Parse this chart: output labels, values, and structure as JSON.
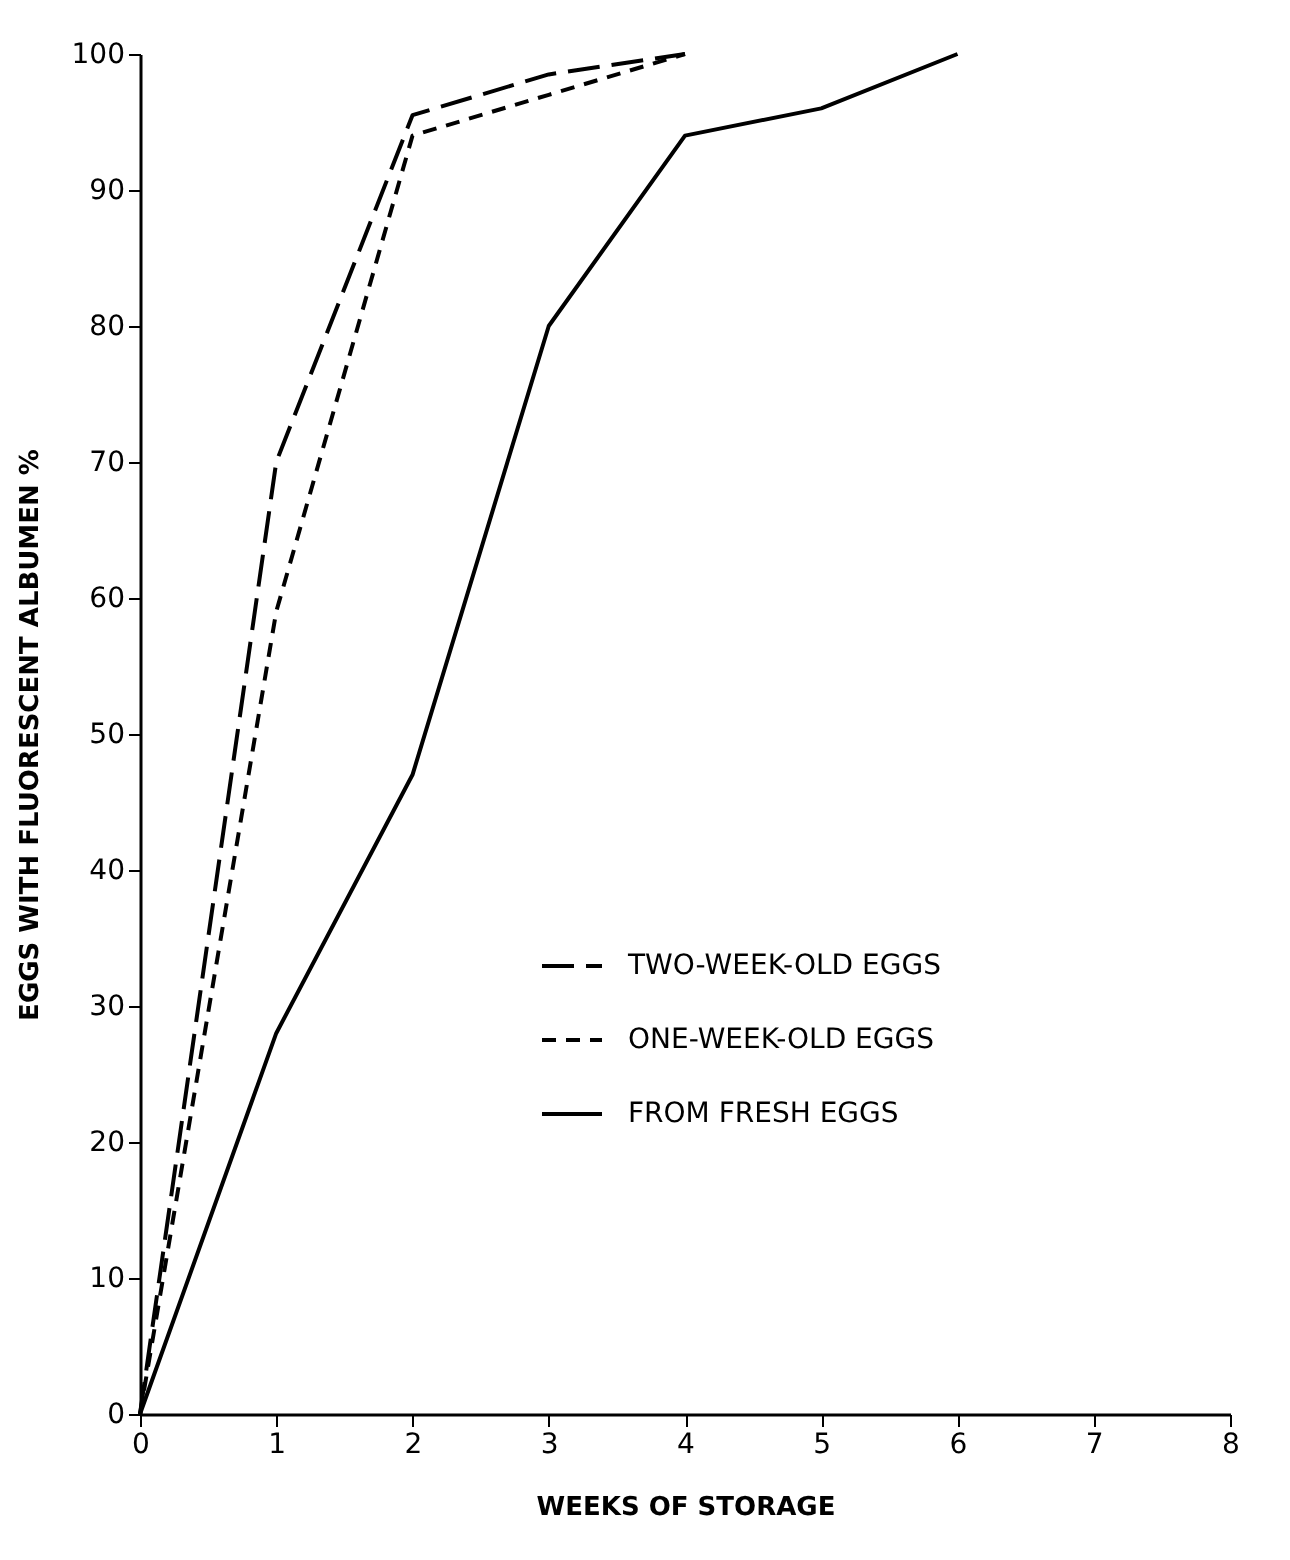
{
  "chart_data": {
    "type": "line",
    "xlabel": "WEEKS OF STORAGE",
    "ylabel": "EGGS WITH FLUORESCENT ALBUMEN %",
    "x": [
      0,
      1,
      2,
      3,
      4,
      5,
      6
    ],
    "series": [
      {
        "name": "TWO-WEEK-OLD EGGS",
        "color": "#000000",
        "line_style": "dashed",
        "x": [
          0,
          1,
          2,
          3,
          4
        ],
        "values": [
          0,
          70,
          95.5,
          98.5,
          100
        ]
      },
      {
        "name": "ONE-WEEK-OLD EGGS",
        "color": "#000000",
        "line_style": "dashed",
        "x": [
          0,
          1,
          2,
          3,
          4
        ],
        "values": [
          0,
          59,
          94,
          97,
          100
        ]
      },
      {
        "name": "FROM FRESH EGGS",
        "color": "#000000",
        "line_style": "solid",
        "values": [
          0,
          28,
          47,
          80,
          94,
          96,
          100
        ]
      }
    ],
    "xlim": [
      0,
      8
    ],
    "xticks": [
      0,
      1,
      2,
      3,
      4,
      5,
      6,
      7,
      8
    ],
    "ylim": [
      0,
      100
    ],
    "yticks": [
      0,
      10,
      20,
      30,
      40,
      50,
      60,
      70,
      80,
      90,
      100
    ],
    "grid": false,
    "legend": "bottom right"
  }
}
